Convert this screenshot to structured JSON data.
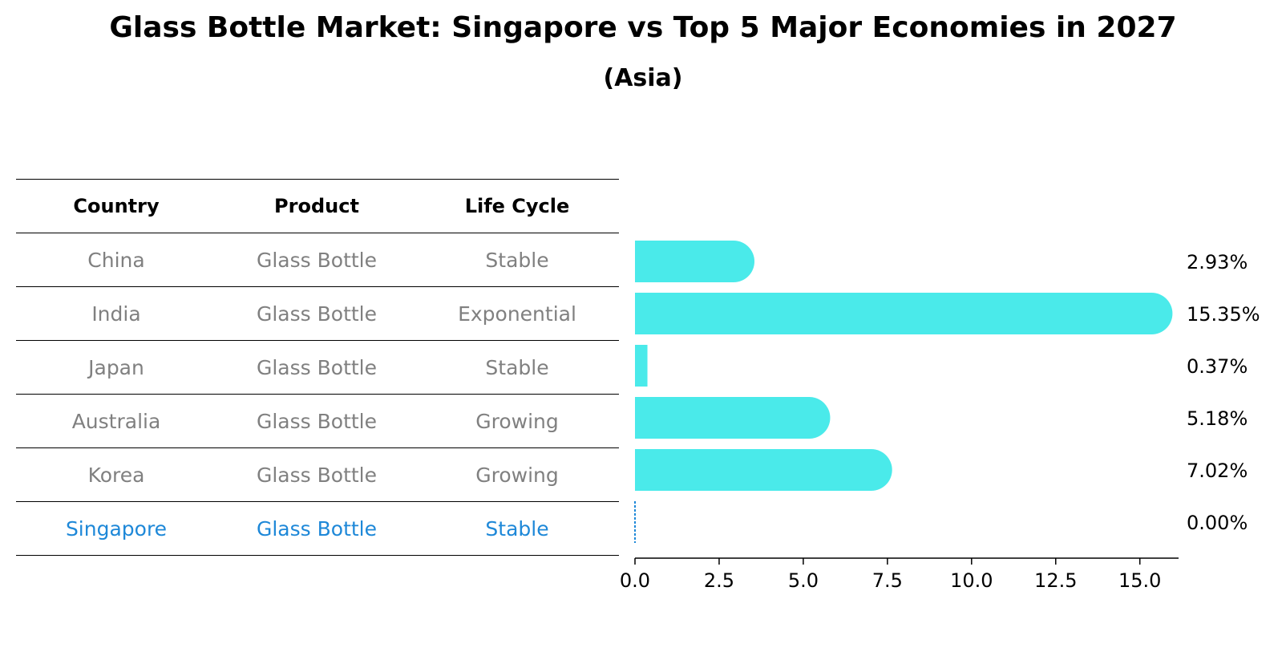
{
  "title": "Glass Bottle Market: Singapore vs Top 5 Major Economies in 2027",
  "subtitle": "(Asia)",
  "table": {
    "headers": [
      "Country",
      "Product",
      "Life Cycle"
    ],
    "rows": [
      [
        "China",
        "Glass Bottle",
        "Stable"
      ],
      [
        "India",
        "Glass Bottle",
        "Exponential"
      ],
      [
        "Japan",
        "Glass Bottle",
        "Stable"
      ],
      [
        "Australia",
        "Glass Bottle",
        "Growing"
      ],
      [
        "Korea",
        "Glass Bottle",
        "Growing"
      ],
      [
        "Singapore",
        "Glass Bottle",
        "Stable"
      ]
    ],
    "highlight_row": "Singapore"
  },
  "chart_data": {
    "type": "bar",
    "orientation": "horizontal",
    "categories": [
      "China",
      "India",
      "Japan",
      "Australia",
      "Korea",
      "Singapore"
    ],
    "values": [
      2.93,
      15.35,
      0.37,
      5.18,
      7.02,
      0.0
    ],
    "value_labels": [
      "2.93%",
      "15.35%",
      "0.37%",
      "5.18%",
      "7.02%",
      "0.00%"
    ],
    "xlim": [
      0,
      16.15
    ],
    "xticks": [
      0.0,
      2.5,
      5.0,
      7.5,
      10.0,
      12.5,
      15.0
    ],
    "xtick_labels": [
      "0.0",
      "2.5",
      "5.0",
      "7.5",
      "10.0",
      "12.5",
      "15.0"
    ],
    "bar_color": "#4aeaea",
    "highlight_color": "#1e88d8",
    "grid": false
  }
}
